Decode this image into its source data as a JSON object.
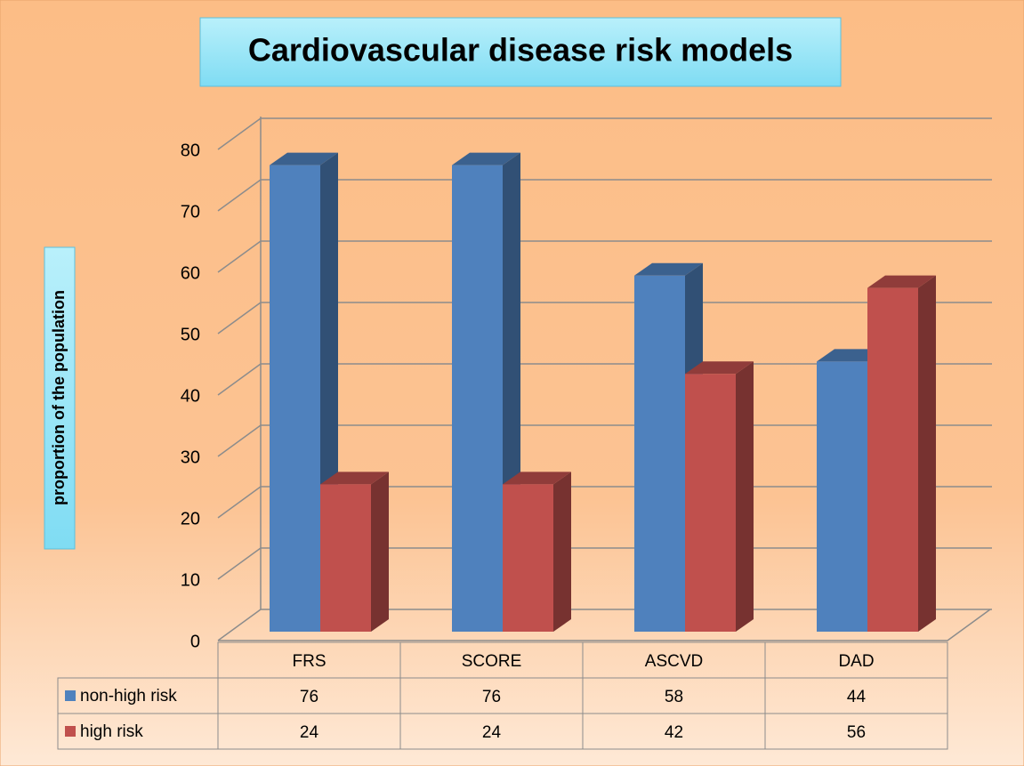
{
  "chart_data": {
    "type": "bar3d",
    "title": "Cardiovascular disease  risk models",
    "y_label": "proportion of the population",
    "categories": [
      "FRS",
      "SCORE",
      "ASCVD",
      "DAD"
    ],
    "series": [
      {
        "name": "non-high risk",
        "color": "#4f81bd",
        "values": [
          76,
          76,
          58,
          44
        ]
      },
      {
        "name": "high risk",
        "color": "#c0504d",
        "values": [
          24,
          24,
          42,
          56
        ]
      }
    ],
    "ylim": [
      0,
      80
    ],
    "yticks": [
      0,
      10,
      20,
      30,
      40,
      50,
      60,
      70,
      80
    ],
    "grid": true,
    "data_table": true
  }
}
